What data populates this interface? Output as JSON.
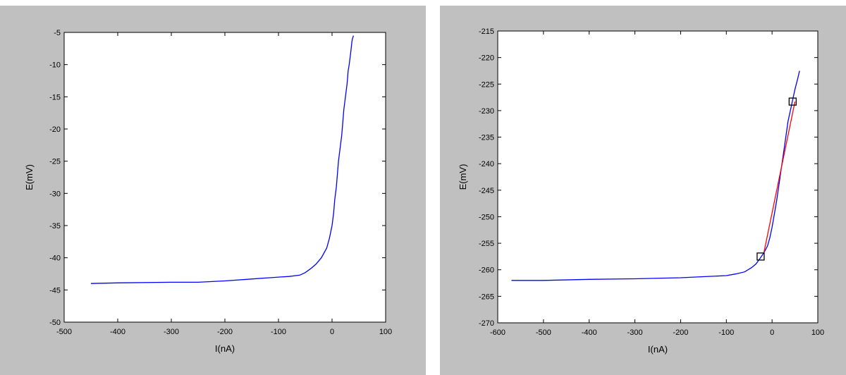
{
  "chart_data": [
    {
      "type": "line",
      "title": "",
      "xlabel": "I(nA)",
      "ylabel": "E(mV)",
      "xlim": [
        -500,
        100
      ],
      "ylim": [
        -50,
        -5
      ],
      "xticks": [
        "-500",
        "-400",
        "-300",
        "-200",
        "-100",
        "0",
        "100"
      ],
      "yticks": [
        "-5",
        "-10",
        "-15",
        "-20",
        "-25",
        "-30",
        "-35",
        "-40",
        "-45",
        "-50"
      ],
      "grid": false,
      "background": "#c0c0c0",
      "series": [
        {
          "color": "#0000ff",
          "x": [
            -450,
            -400,
            -300,
            -250,
            -200,
            -150,
            -100,
            -80,
            -60,
            -50,
            -40,
            -30,
            -20,
            -10,
            -5,
            0,
            3,
            5,
            8,
            10,
            12,
            15,
            18,
            20,
            22,
            25,
            28,
            30,
            32,
            35,
            37,
            38,
            40
          ],
          "y": [
            -44.0,
            -43.9,
            -43.8,
            -43.8,
            -43.6,
            -43.3,
            -43.0,
            -42.9,
            -42.7,
            -42.3,
            -41.7,
            -41.0,
            -40.0,
            -38.5,
            -37.0,
            -35.0,
            -33.0,
            -31.0,
            -29.0,
            -27.0,
            -25.0,
            -23.0,
            -21.0,
            -19.0,
            -17.0,
            -15.0,
            -13.0,
            -11.0,
            -10.0,
            -8.0,
            -6.5,
            -6.0,
            -5.5
          ]
        }
      ]
    },
    {
      "type": "line",
      "title": "",
      "xlabel": "I(nA)",
      "ylabel": "E(mV)",
      "xlim": [
        -600,
        100
      ],
      "ylim": [
        -270,
        -215
      ],
      "xticks": [
        "-600",
        "-500",
        "-400",
        "-300",
        "-200",
        "-100",
        "0",
        "100"
      ],
      "yticks": [
        "-215",
        "-220",
        "-225",
        "-230",
        "-235",
        "-240",
        "-245",
        "-250",
        "-255",
        "-260",
        "-265",
        "-270"
      ],
      "grid": false,
      "background": "#c0c0c0",
      "series": [
        {
          "color": "#0000ff",
          "x": [
            -570,
            -500,
            -400,
            -300,
            -200,
            -150,
            -100,
            -80,
            -60,
            -45,
            -35,
            -25,
            -18,
            -10,
            -5,
            0,
            5,
            10,
            15,
            20,
            25,
            30,
            35,
            40,
            45,
            50,
            53,
            56,
            60
          ],
          "y": [
            -262.0,
            -262.0,
            -261.8,
            -261.7,
            -261.5,
            -261.3,
            -261.1,
            -260.8,
            -260.4,
            -259.6,
            -258.9,
            -257.7,
            -256.8,
            -255.5,
            -254.0,
            -252.0,
            -249.5,
            -247.0,
            -244.0,
            -241.0,
            -238.0,
            -235.0,
            -232.0,
            -230.0,
            -228.0,
            -226.0,
            -225.0,
            -224.0,
            -222.5
          ]
        },
        {
          "color": "#ff0000",
          "x": [
            -18,
            50
          ],
          "y": [
            -256.8,
            -228.3
          ]
        }
      ],
      "markers": [
        {
          "x": -25,
          "y": -257.5,
          "shape": "square"
        },
        {
          "x": 45,
          "y": -228.3,
          "shape": "square"
        }
      ]
    }
  ]
}
